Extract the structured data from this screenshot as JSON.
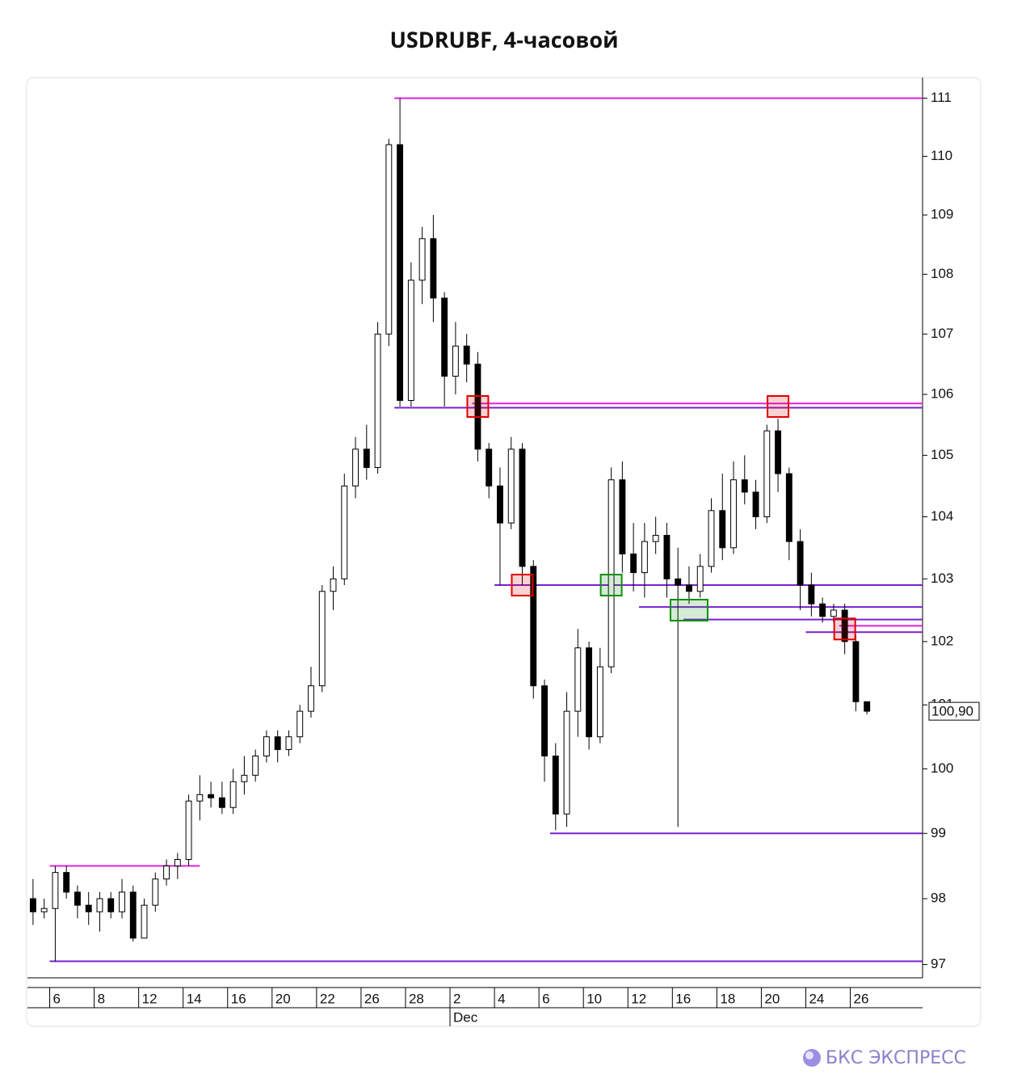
{
  "chart_data": {
    "type": "candlestick",
    "title": "USDRUBF, 4-часовой",
    "ylim": [
      96.8,
      111.3
    ],
    "log_scale": true,
    "yticks": [
      97,
      98,
      99,
      100,
      101,
      102,
      103,
      104,
      105,
      106,
      107,
      108,
      109,
      110,
      111
    ],
    "xlim": [
      -0.5,
      80
    ],
    "xticks": [
      {
        "value": 1.5,
        "label": "6"
      },
      {
        "value": 5.5,
        "label": "8"
      },
      {
        "value": 9.5,
        "label": "12"
      },
      {
        "value": 13.5,
        "label": "14"
      },
      {
        "value": 17.5,
        "label": "16"
      },
      {
        "value": 21.5,
        "label": "20"
      },
      {
        "value": 25.5,
        "label": "22"
      },
      {
        "value": 29.5,
        "label": "26"
      },
      {
        "value": 33.5,
        "label": "28"
      },
      {
        "value": 37.5,
        "label": "2"
      },
      {
        "value": 41.5,
        "label": "4"
      },
      {
        "value": 45.5,
        "label": "6"
      },
      {
        "value": 49.5,
        "label": "10"
      },
      {
        "value": 53.5,
        "label": "12"
      },
      {
        "value": 57.5,
        "label": "16"
      },
      {
        "value": 61.5,
        "label": "18"
      },
      {
        "value": 65.5,
        "label": "20"
      },
      {
        "value": 69.5,
        "label": "24"
      },
      {
        "value": 73.5,
        "label": "26"
      }
    ],
    "month_labels": [
      {
        "value": 37.5,
        "label": "Dec"
      }
    ],
    "up_color": "#ffffff",
    "down_color": "#000000",
    "open": [
      98.0,
      97.8,
      97.85,
      98.4,
      98.1,
      97.9,
      97.8,
      98.0,
      97.8,
      98.1,
      97.4,
      97.9,
      98.3,
      98.5,
      98.6,
      99.5,
      99.6,
      99.55,
      99.4,
      99.8,
      99.9,
      100.2,
      100.5,
      100.3,
      100.5,
      100.9,
      101.3,
      102.8,
      103.0,
      104.5,
      105.1,
      104.8,
      107.0,
      110.2,
      105.9,
      107.9,
      108.6,
      107.6,
      106.3,
      106.8,
      106.5,
      105.1,
      104.5,
      103.9,
      105.1,
      103.2,
      101.3,
      100.2,
      99.3,
      100.9,
      101.9,
      100.5,
      101.6,
      104.6,
      103.4,
      103.1,
      103.6,
      103.7,
      103.0,
      102.9,
      102.8,
      103.2,
      104.1,
      103.5,
      104.6,
      104.4,
      104.0,
      105.4,
      104.7,
      103.6,
      102.9,
      102.6,
      102.4,
      102.5,
      102.0,
      101.05
    ],
    "high": [
      98.3,
      98.0,
      98.5,
      98.5,
      98.2,
      98.1,
      98.1,
      98.1,
      98.3,
      98.2,
      98.0,
      98.4,
      98.6,
      98.7,
      99.6,
      99.9,
      99.8,
      99.8,
      100.0,
      100.2,
      100.3,
      100.6,
      100.6,
      100.6,
      101.0,
      101.6,
      102.9,
      103.2,
      104.7,
      105.3,
      105.5,
      107.2,
      110.3,
      111.0,
      108.2,
      108.8,
      109.0,
      107.7,
      107.2,
      107.0,
      106.7,
      105.2,
      104.8,
      105.3,
      105.2,
      103.3,
      101.4,
      100.4,
      101.2,
      102.2,
      102.0,
      101.9,
      104.8,
      104.9,
      103.9,
      103.9,
      104.0,
      103.9,
      103.5,
      103.2,
      103.4,
      104.3,
      104.7,
      104.9,
      105.0,
      104.6,
      105.5,
      105.6,
      104.8,
      103.8,
      103.1,
      102.7,
      102.6,
      102.6,
      102.1,
      101.05
    ],
    "low": [
      97.6,
      97.7,
      97.05,
      98.0,
      97.7,
      97.6,
      97.5,
      97.7,
      97.7,
      97.35,
      97.4,
      97.8,
      98.2,
      98.3,
      98.5,
      99.2,
      99.4,
      99.3,
      99.3,
      99.6,
      99.8,
      100.1,
      100.1,
      100.2,
      100.4,
      100.8,
      101.2,
      102.5,
      102.9,
      104.3,
      104.6,
      104.7,
      106.8,
      105.8,
      105.8,
      107.5,
      107.2,
      105.8,
      106.0,
      106.2,
      104.9,
      104.3,
      102.9,
      103.8,
      102.9,
      101.1,
      99.8,
      99.05,
      99.1,
      100.5,
      100.3,
      100.4,
      101.5,
      103.1,
      102.8,
      102.7,
      103.4,
      102.7,
      99.1,
      102.6,
      102.7,
      103.1,
      103.3,
      103.4,
      104.2,
      103.8,
      103.9,
      104.4,
      103.3,
      102.5,
      102.4,
      102.3,
      102.3,
      101.8,
      100.9,
      100.85
    ],
    "close": [
      97.8,
      97.85,
      98.4,
      98.1,
      97.9,
      97.8,
      98.0,
      97.8,
      98.1,
      97.4,
      97.9,
      98.3,
      98.5,
      98.6,
      99.5,
      99.6,
      99.55,
      99.4,
      99.8,
      99.9,
      100.2,
      100.5,
      100.3,
      100.5,
      100.9,
      101.3,
      102.8,
      103.0,
      104.5,
      105.1,
      104.8,
      107.0,
      110.2,
      105.9,
      107.9,
      108.6,
      107.6,
      106.3,
      106.8,
      106.5,
      105.1,
      104.5,
      103.9,
      105.1,
      103.2,
      101.3,
      100.2,
      99.3,
      100.9,
      101.9,
      100.5,
      101.6,
      104.6,
      103.4,
      103.1,
      103.6,
      103.7,
      103.0,
      102.9,
      102.8,
      103.2,
      104.1,
      103.5,
      104.6,
      104.4,
      104.0,
      105.4,
      104.7,
      103.6,
      102.9,
      102.6,
      102.4,
      102.5,
      102.0,
      101.05,
      100.9
    ],
    "levels": [
      {
        "value": 111,
        "from": 33,
        "color": "#e020e0"
      },
      {
        "value": 105.85,
        "from": 40,
        "color": "#e020e0"
      },
      {
        "value": 105.78,
        "from": 33,
        "color": "#7a1fd0"
      },
      {
        "value": 102.9,
        "from": 42,
        "color": "#7a1fd0"
      },
      {
        "value": 102.55,
        "from": 55,
        "color": "#7a1fd0"
      },
      {
        "value": 102.35,
        "from": 59,
        "color": "#7a1fd0"
      },
      {
        "value": 102.25,
        "from": 73,
        "color": "#e020e0"
      },
      {
        "value": 102.15,
        "from": 70,
        "color": "#7a1fd0"
      },
      {
        "value": 99,
        "from": 47,
        "color": "#7a1fd0"
      },
      {
        "value": 98.5,
        "from": 2,
        "color": "#e020e0",
        "to": 15
      },
      {
        "value": 97.05,
        "from": 2,
        "color": "#7a1fd0"
      }
    ],
    "markers": [
      {
        "x": 40,
        "value": 105.8,
        "color": "#e00000"
      },
      {
        "x": 44,
        "value": 102.9,
        "color": "#e00000"
      },
      {
        "x": 52,
        "value": 102.9,
        "color": "#109010"
      },
      {
        "x": 59,
        "value": 102.5,
        "color": "#109010"
      },
      {
        "x": 67,
        "value": 105.8,
        "color": "#e00000"
      },
      {
        "x": 73,
        "value": 102.2,
        "color": "#e00000"
      }
    ],
    "last_price": {
      "value": 100.9,
      "label": "100,90"
    }
  },
  "brand": "БКС ЭКСПРЕСС"
}
